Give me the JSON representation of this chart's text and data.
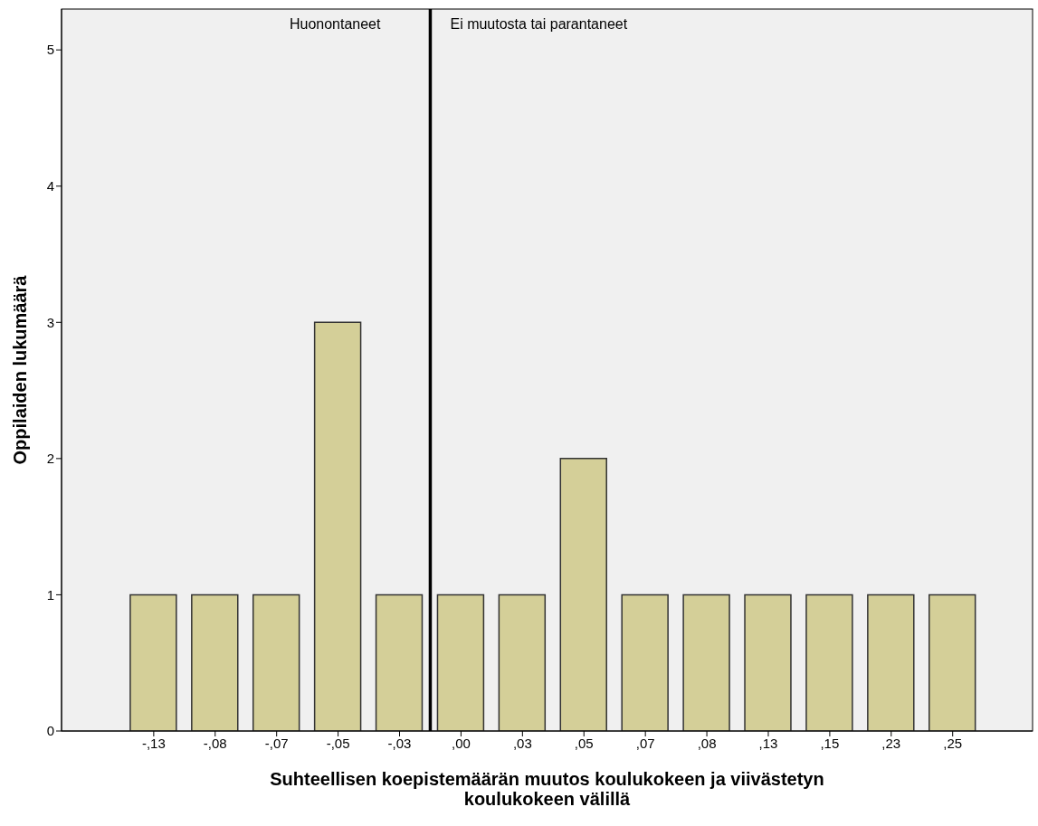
{
  "chart_data": {
    "type": "bar",
    "xlabel": "Suhteellisen koepistemäärän muutos koulukokeen ja viivästetyn koulukokeen välillä",
    "ylabel": "Oppilaiden lukumäärä",
    "categories": [
      "-,13",
      "-,08",
      "-,07",
      "-,05",
      "-,03",
      ",00",
      ",03",
      ",05",
      ",07",
      ",08",
      ",13",
      ",15",
      ",23",
      ",25"
    ],
    "values": [
      1,
      1,
      1,
      3,
      1,
      1,
      1,
      2,
      1,
      1,
      1,
      1,
      1,
      1
    ],
    "color": "#d4cf98",
    "ylim": [
      0,
      5.3
    ],
    "yticks": [
      0,
      1,
      2,
      3,
      4,
      5
    ],
    "annotations": [
      "Huonontaneet",
      "Ei muutosta tai parantaneet"
    ]
  }
}
